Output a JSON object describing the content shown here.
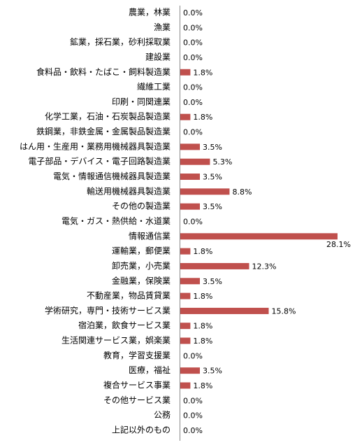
{
  "chart_data": {
    "type": "bar",
    "orientation": "horizontal",
    "color": "#c0504d",
    "categories": [
      "農業，林業",
      "漁業",
      "鉱業，採石業，砂利採取業",
      "建設業",
      "食料品・飲料・たばこ・飼料製造業",
      "繊維工業",
      "印刷・同関連業",
      "化学工業，石油・石炭製品製造業",
      "鉄鋼業，非鉄金属・金属製品製造業",
      "はん用・生産用・業務用機械器具製造業",
      "電子部品・デバイス・電子回路製造業",
      "電気・情報通信機械器具製造業",
      "輸送用機械器具製造業",
      "その他の製造業",
      "電気・ガス・熱供給・水道業",
      "情報通信業",
      "運輸業，郵便業",
      "卸売業，小売業",
      "金融業，保険業",
      "不動産業，物品賃貸業",
      "学術研究，専門・技術サービス業",
      "宿泊業，飲食サービス業",
      "生活関連サービス業，娯楽業",
      "教育，学習支援業",
      "医療，福祉",
      "複合サービス事業",
      "その他サービス業",
      "公務",
      "上記以外のもの"
    ],
    "values": [
      0.0,
      0.0,
      0.0,
      0.0,
      1.8,
      0.0,
      0.0,
      1.8,
      0.0,
      3.5,
      5.3,
      3.5,
      8.8,
      3.5,
      0.0,
      28.1,
      1.8,
      12.3,
      3.5,
      1.8,
      15.8,
      1.8,
      1.8,
      0.0,
      3.5,
      1.8,
      0.0,
      0.0,
      0.0
    ],
    "value_labels": [
      "0.0%",
      "0.0%",
      "0.0%",
      "0.0%",
      "1.8%",
      "0.0%",
      "0.0%",
      "1.8%",
      "0.0%",
      "3.5%",
      "5.3%",
      "3.5%",
      "8.8%",
      "3.5%",
      "0.0%",
      "28.1%",
      "1.8%",
      "12.3%",
      "3.5%",
      "1.8%",
      "15.8%",
      "1.8%",
      "1.8%",
      "0.0%",
      "3.5%",
      "1.8%",
      "0.0%",
      "0.0%",
      "0.0%"
    ]
  }
}
